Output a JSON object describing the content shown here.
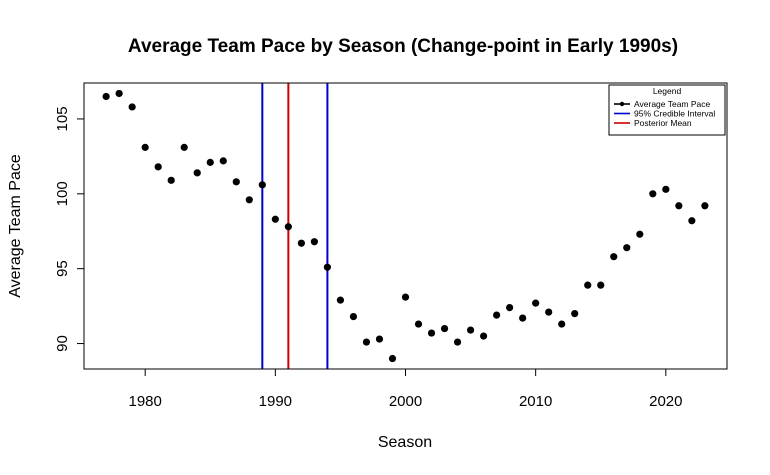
{
  "chart_data": {
    "type": "scatter",
    "title": "Average Team Pace by Season (Change-point in Early 1990s)",
    "xlabel": "Season",
    "ylabel": "Average Team Pace",
    "xlim": [
      1975.3,
      2024.7
    ],
    "ylim": [
      88.3,
      107.4
    ],
    "xticks": [
      1980,
      1990,
      2000,
      2010,
      2020
    ],
    "yticks": [
      90,
      95,
      100,
      105
    ],
    "grid": false,
    "legend": {
      "title": "Legend",
      "position": "top-right",
      "entries": [
        {
          "label": "Average Team Pace",
          "color": "#000000",
          "marker": "point-line"
        },
        {
          "label": "95% Credible Interval",
          "color": "#0000CD",
          "marker": "line"
        },
        {
          "label": "Posterior Mean",
          "color": "#CD0000",
          "marker": "line"
        }
      ]
    },
    "series": [
      {
        "name": "Average Team Pace",
        "color": "#000000",
        "points": [
          {
            "x": 1977,
            "y": 106.5
          },
          {
            "x": 1978,
            "y": 106.7
          },
          {
            "x": 1979,
            "y": 105.8
          },
          {
            "x": 1980,
            "y": 103.1
          },
          {
            "x": 1981,
            "y": 101.8
          },
          {
            "x": 1982,
            "y": 100.9
          },
          {
            "x": 1983,
            "y": 103.1
          },
          {
            "x": 1984,
            "y": 101.4
          },
          {
            "x": 1985,
            "y": 102.1
          },
          {
            "x": 1986,
            "y": 102.2
          },
          {
            "x": 1987,
            "y": 100.8
          },
          {
            "x": 1988,
            "y": 99.6
          },
          {
            "x": 1989,
            "y": 100.6
          },
          {
            "x": 1990,
            "y": 98.3
          },
          {
            "x": 1991,
            "y": 97.8
          },
          {
            "x": 1992,
            "y": 96.7
          },
          {
            "x": 1993,
            "y": 96.8
          },
          {
            "x": 1994,
            "y": 95.1
          },
          {
            "x": 1995,
            "y": 92.9
          },
          {
            "x": 1996,
            "y": 91.8
          },
          {
            "x": 1997,
            "y": 90.1
          },
          {
            "x": 1998,
            "y": 90.3
          },
          {
            "x": 1999,
            "y": 89.0
          },
          {
            "x": 2000,
            "y": 93.1
          },
          {
            "x": 2001,
            "y": 91.3
          },
          {
            "x": 2002,
            "y": 90.7
          },
          {
            "x": 2003,
            "y": 91.0
          },
          {
            "x": 2004,
            "y": 90.1
          },
          {
            "x": 2005,
            "y": 90.9
          },
          {
            "x": 2006,
            "y": 90.5
          },
          {
            "x": 2007,
            "y": 91.9
          },
          {
            "x": 2008,
            "y": 92.4
          },
          {
            "x": 2009,
            "y": 91.7
          },
          {
            "x": 2010,
            "y": 92.7
          },
          {
            "x": 2011,
            "y": 92.1
          },
          {
            "x": 2012,
            "y": 91.3
          },
          {
            "x": 2013,
            "y": 92.0
          },
          {
            "x": 2014,
            "y": 93.9
          },
          {
            "x": 2015,
            "y": 93.9
          },
          {
            "x": 2016,
            "y": 95.8
          },
          {
            "x": 2017,
            "y": 96.4
          },
          {
            "x": 2018,
            "y": 97.3
          },
          {
            "x": 2019,
            "y": 100.0
          },
          {
            "x": 2020,
            "y": 100.3
          },
          {
            "x": 2021,
            "y": 99.2
          },
          {
            "x": 2022,
            "y": 98.2
          },
          {
            "x": 2023,
            "y": 99.2
          }
        ]
      }
    ],
    "vertical_lines": [
      {
        "series": "95% Credible Interval",
        "x": 1989,
        "color": "#0000CD"
      },
      {
        "series": "Posterior Mean",
        "x": 1991,
        "color": "#CD0000"
      },
      {
        "series": "95% Credible Interval",
        "x": 1994,
        "color": "#0000CD"
      }
    ]
  }
}
